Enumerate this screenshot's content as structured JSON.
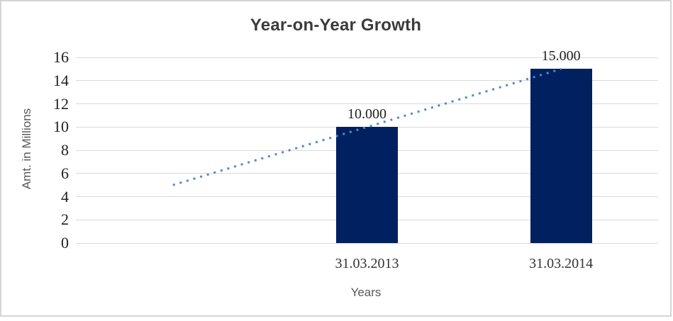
{
  "chart_data": {
    "type": "bar",
    "title": "Year-on-Year Growth",
    "categories": [
      "31.03.2013",
      "31.03.2014"
    ],
    "values": [
      10,
      15
    ],
    "data_labels": [
      "10.000",
      "15.000"
    ],
    "xlabel": "Years",
    "ylabel": "Amt. in Millions",
    "ylim": [
      0,
      16
    ],
    "yticks": [
      0,
      2,
      4,
      6,
      8,
      10,
      12,
      14,
      16
    ],
    "grid": "horizontal",
    "grid_color": "#d9d9d9",
    "legend": "none",
    "bar_color": "#002060",
    "trendline": {
      "style": "dotted",
      "color": "#5089c9",
      "start_value": 5,
      "end_value": 15
    },
    "layout": {
      "category_slots": 3,
      "bar_slots": [
        1,
        2
      ],
      "trend_start_slot": 0,
      "trend_end_slot": 2
    }
  }
}
